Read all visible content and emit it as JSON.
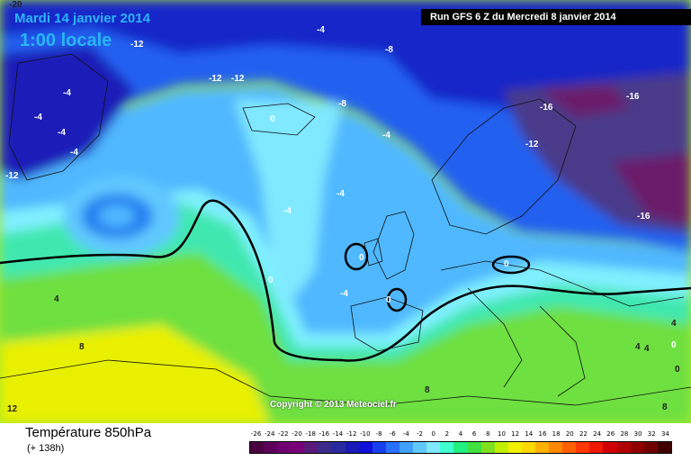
{
  "header": {
    "date": "Mardi 14 janvier 2014",
    "time": "1:00 locale",
    "run": "Run GFS 6 Z du Mercredi 8 janvier 2014"
  },
  "footer": {
    "variable": "Température 850hPa",
    "lead": "(+ 138h)",
    "copyright": "Copyright © 2013 Meteociel.fr"
  },
  "scale": {
    "values": [
      "-26",
      "-24",
      "-22",
      "-20",
      "-18",
      "-16",
      "-14",
      "-12",
      "-10",
      "-8",
      "-6",
      "-4",
      "-2",
      "0",
      "2",
      "4",
      "6",
      "8",
      "10",
      "12",
      "14",
      "16",
      "18",
      "20",
      "22",
      "24",
      "26",
      "28",
      "30",
      "32",
      "34"
    ],
    "colors": [
      "#4a0040",
      "#5c005a",
      "#700070",
      "#7a007a",
      "#5a1a7a",
      "#3a2a8a",
      "#2a2aa0",
      "#1a1ab8",
      "#1010d8",
      "#1840f0",
      "#2870ff",
      "#40a0ff",
      "#60c8ff",
      "#80e8ff",
      "#40ffd0",
      "#20f080",
      "#40e040",
      "#80e020",
      "#c0f000",
      "#f0f000",
      "#ffd800",
      "#ffb000",
      "#ff8800",
      "#ff6000",
      "#ff3800",
      "#f01800",
      "#d00000",
      "#b00000",
      "#900000",
      "#700000",
      "#400000"
    ]
  },
  "labels": [
    {
      "text": "-12"
    },
    {
      "text": "-4"
    },
    {
      "text": "-8"
    },
    {
      "text": "-12"
    },
    {
      "text": "-12"
    },
    {
      "text": "-4"
    },
    {
      "text": "-4"
    },
    {
      "text": "-4"
    },
    {
      "text": "-4"
    },
    {
      "text": "-12"
    },
    {
      "text": "-8"
    },
    {
      "text": "0"
    },
    {
      "text": "-4"
    },
    {
      "text": "-4"
    },
    {
      "text": "-4"
    },
    {
      "text": "0"
    },
    {
      "text": "0"
    },
    {
      "text": "-4"
    },
    {
      "text": "0"
    },
    {
      "text": "0"
    },
    {
      "text": "0"
    },
    {
      "text": "-16"
    },
    {
      "text": "-16"
    },
    {
      "text": "-12"
    },
    {
      "text": "-16"
    },
    {
      "text": "4"
    },
    {
      "text": "8"
    },
    {
      "text": "12"
    },
    {
      "text": "8"
    },
    {
      "text": "4"
    },
    {
      "text": "4"
    },
    {
      "text": "0"
    },
    {
      "text": "4"
    },
    {
      "text": "8"
    },
    {
      "text": "-20"
    }
  ]
}
